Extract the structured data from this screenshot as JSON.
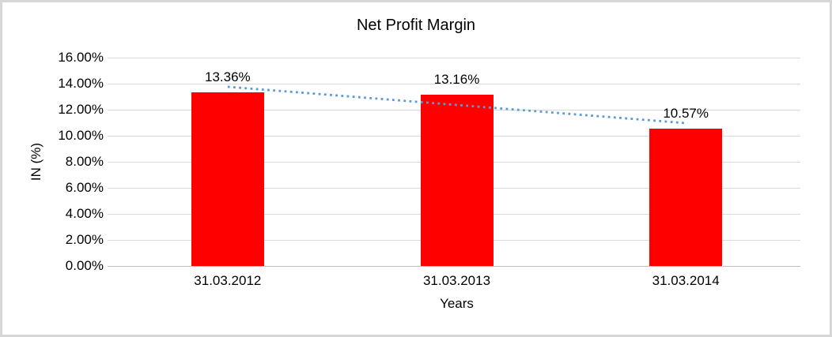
{
  "frame": {
    "background": "#ffffff",
    "border_color": "#d6d6d6"
  },
  "chart_data": {
    "type": "bar",
    "title": "Net Profit Margin",
    "xlabel": "Years",
    "ylabel": "IN (%)",
    "categories": [
      "31.03.2012",
      "31.03.2013",
      "31.03.2014"
    ],
    "values": [
      13.36,
      13.16,
      10.57
    ],
    "data_labels": [
      "13.36%",
      "13.16%",
      "10.57%"
    ],
    "ylim": [
      0,
      16
    ],
    "ytick_step": 2,
    "ytick_labels": [
      "0.00%",
      "2.00%",
      "4.00%",
      "6.00%",
      "8.00%",
      "10.00%",
      "12.00%",
      "14.00%",
      "16.00%"
    ],
    "grid": "horizontal",
    "legend": "none",
    "bar_color": "#ff0000",
    "gridline_color": "#d9d9d9",
    "axis_line_color": "#bfbfbf",
    "text_color": "#000000",
    "trendline": {
      "type": "linear",
      "style": "dotted",
      "color": "#5b9bd5",
      "start_percent": 13.76,
      "end_percent": 10.97
    }
  }
}
